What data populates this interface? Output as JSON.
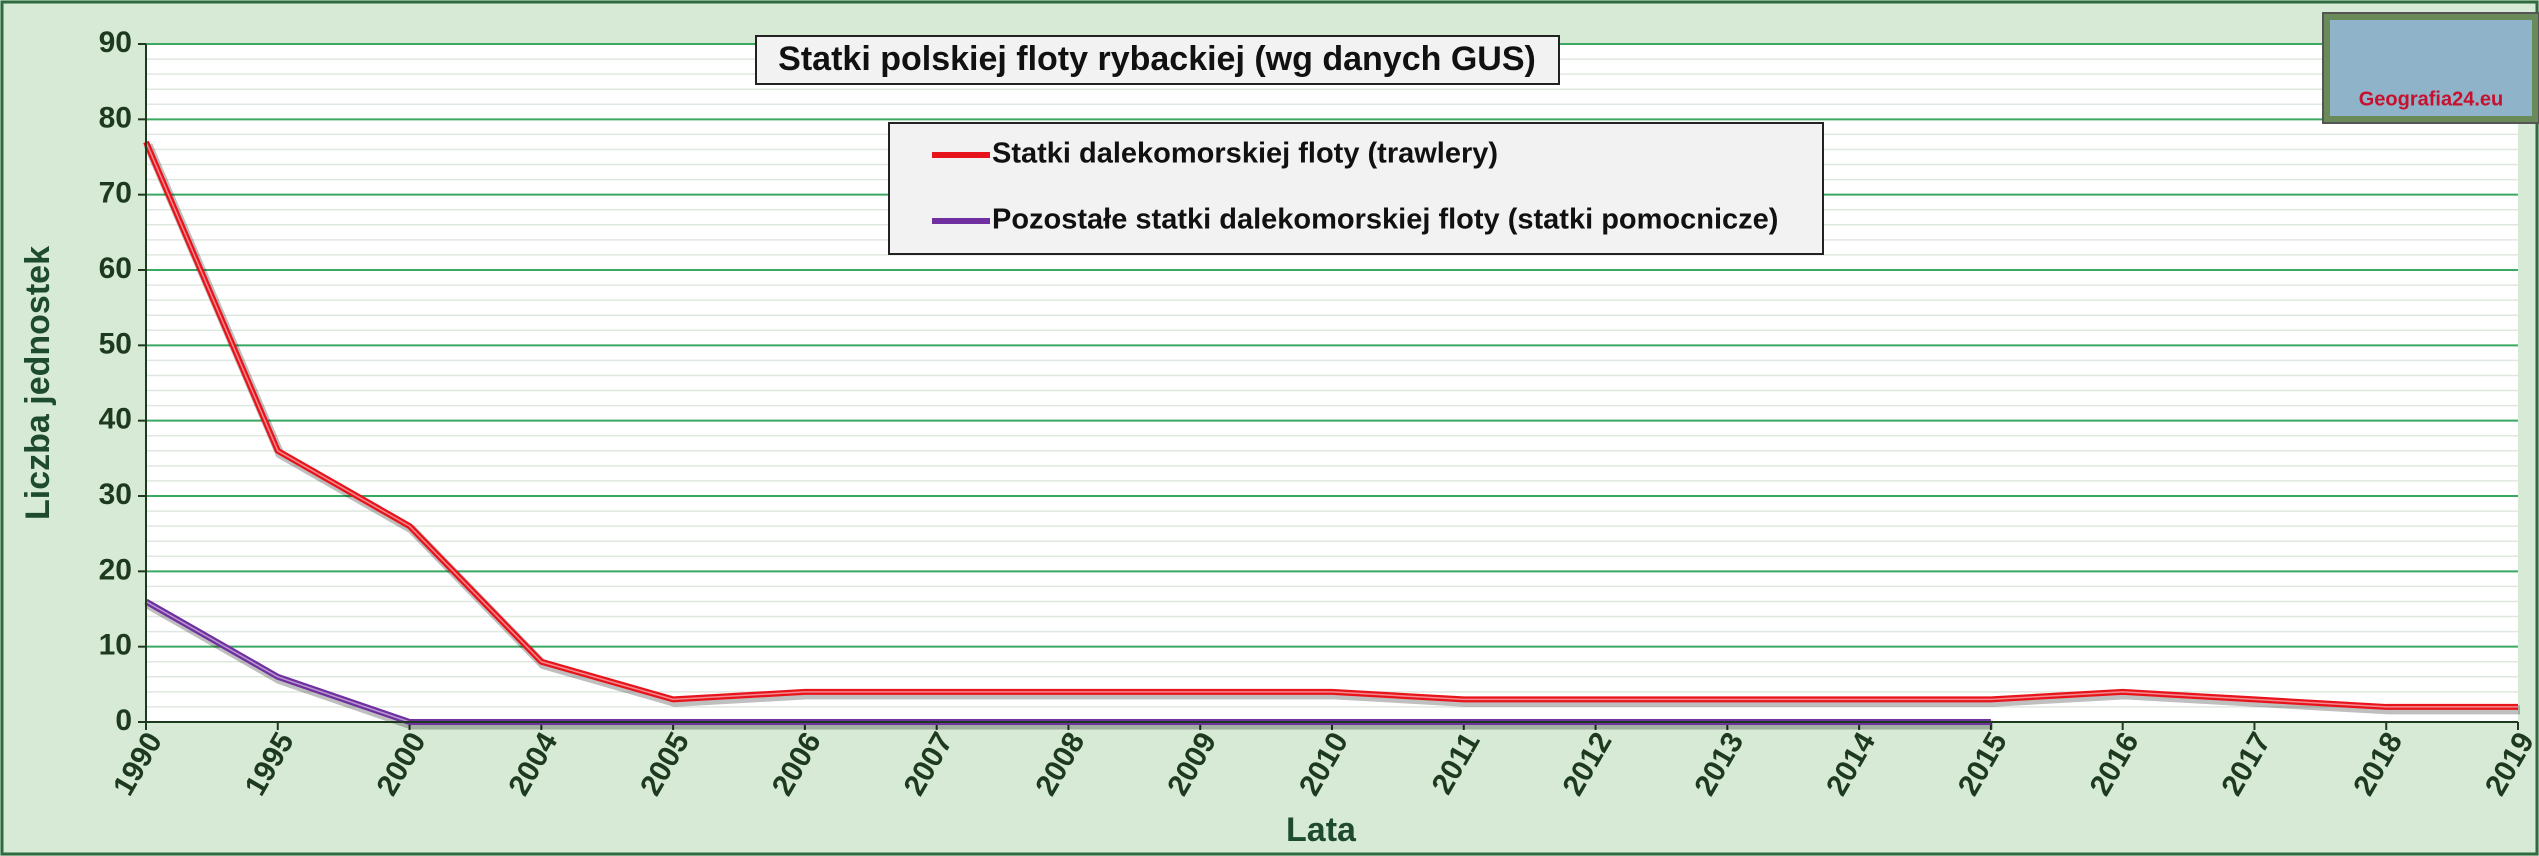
{
  "chart_data": {
    "type": "line",
    "title": "Statki polskiej floty rybackiej (wg danych GUS)",
    "logo_text": "Geografia24.eu",
    "x_label": "Lata",
    "y_label": "Liczba jednostek",
    "categories": [
      "1990",
      "1995",
      "2000",
      "2004",
      "2005",
      "2006",
      "2007",
      "2008",
      "2009",
      "2010",
      "2011",
      "2012",
      "2013",
      "2014",
      "2015",
      "2016",
      "2017",
      "2018",
      "2019"
    ],
    "series": [
      {
        "name": "Statki dalekomorskiej floty (trawlery)",
        "color": "#e8141c",
        "values": [
          77,
          36,
          26,
          8,
          3,
          4,
          4,
          4,
          4,
          4,
          3,
          3,
          3,
          3,
          3,
          4,
          3,
          2,
          2
        ]
      },
      {
        "name": "Pozostałe statki dalekomorskiej floty (statki pomocnicze)",
        "color": "#7030a0",
        "values": [
          16,
          6,
          0,
          0,
          0,
          0,
          0,
          0,
          0,
          0,
          0,
          0,
          0,
          0,
          0,
          null,
          null,
          null,
          null
        ]
      }
    ],
    "ylim": [
      0,
      90
    ],
    "yticks": [
      0,
      10,
      20,
      30,
      40,
      50,
      60,
      70,
      80,
      90
    ],
    "grid": true
  }
}
